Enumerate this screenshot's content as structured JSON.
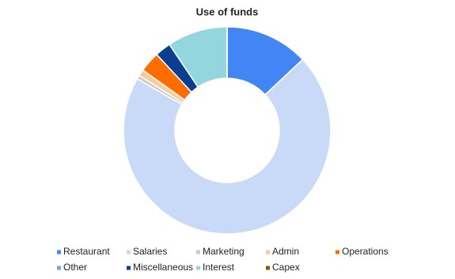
{
  "chart_data": {
    "type": "donut",
    "title": "Use of funds",
    "categories": [
      "Restaurant",
      "Salaries",
      "Marketing",
      "Admin",
      "Operations",
      "Other",
      "Miscellaneous",
      "Interest",
      "Capex"
    ],
    "values": [
      13,
      70.3,
      0.6,
      1,
      3.2,
      0,
      2.5,
      9.4,
      0
    ],
    "colors": [
      "#4285f4",
      "#c9daf8",
      "#cccccc",
      "#f9cb9c",
      "#ff6d01",
      "#6fa8dc",
      "#0b3d91",
      "#93d6de",
      "#7f6000"
    ],
    "legend": "bottom"
  }
}
